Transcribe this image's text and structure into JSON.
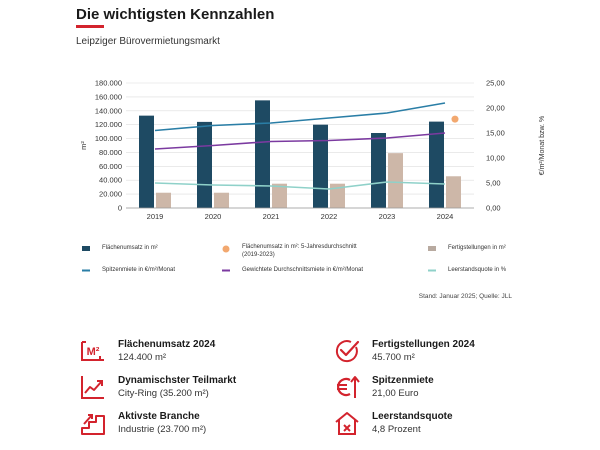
{
  "header": {
    "title": "Die wichtigsten Kennzahlen",
    "subtitle": "Leipziger Bürovermietungsmarkt"
  },
  "chart_data": {
    "type": "bar",
    "categories": [
      "2019",
      "2020",
      "2021",
      "2022",
      "2023",
      "2024"
    ],
    "left_axis": {
      "label": "m²",
      "min": 0,
      "max": 180000,
      "ticks": [
        "0",
        "20.000",
        "40.000",
        "60.000",
        "80.000",
        "100.000",
        "120.000",
        "140.000",
        "160.000",
        "180.000"
      ]
    },
    "right_axis": {
      "label": "€/m²/Monat bzw. %",
      "min": 0,
      "max": 25,
      "ticks": [
        "0,00",
        "5,00",
        "10,00",
        "15,00",
        "20,00",
        "25,00"
      ]
    },
    "series": [
      {
        "name": "Flächenumsatz in m²",
        "kind": "bar",
        "axis": "left",
        "color": "#1e4a63",
        "values": [
          133000,
          124000,
          155000,
          120000,
          108000,
          124400
        ]
      },
      {
        "name": "Fertigstellungen in m²",
        "kind": "bar",
        "axis": "left",
        "color": "#cdb7a8",
        "values": [
          22000,
          22000,
          35000,
          35000,
          79000,
          45700
        ]
      },
      {
        "name": "Spitzenmiete in €/m²/Monat",
        "kind": "line",
        "axis": "right",
        "color": "#2a7ea6",
        "values": [
          15.5,
          16.5,
          17.0,
          18.0,
          19.0,
          21.0
        ]
      },
      {
        "name": "Gewichtete Durchschnittsmiete in €/m²/Monat",
        "kind": "line",
        "axis": "right",
        "color": "#7b3aa0",
        "values": [
          11.8,
          12.5,
          13.3,
          13.5,
          14.0,
          15.0
        ]
      },
      {
        "name": "Leerstandsquote in %",
        "kind": "line",
        "axis": "right",
        "color": "#8fd1c9",
        "values": [
          5.0,
          4.6,
          4.4,
          3.8,
          5.2,
          4.8
        ]
      },
      {
        "name": "Flächenumsatz in m²: 5-Jahresdurchschnitt (2019-2023)",
        "kind": "point",
        "axis": "left",
        "color": "#f2a86f",
        "x": "2024",
        "value": 128000
      }
    ]
  },
  "legend": {
    "items": [
      "Flächenumsatz in m²",
      "Flächenumsatz in m²: 5-Jahresdurchschnitt (2019-2023)",
      "Fertigstellungen in m²",
      "Spitzenmiete in €/m²/Monat",
      "Gewichtete Durchschnittsmiete in €/m²/Monat",
      "Leerstandsquote in %"
    ]
  },
  "source": "Stand: Januar 2025; Quelle: JLL",
  "kpis": {
    "k1_title": "Flächenumsatz 2024",
    "k1_value": "124.400 m²",
    "k2_title": "Fertigstellungen 2024",
    "k2_value": "45.700 m²",
    "k3_title": "Dynamischster Teilmarkt",
    "k3_value": "City-Ring (35.200 m²)",
    "k4_title": "Spitzenmiete",
    "k4_value": "21,00 Euro",
    "k5_title": "Aktivste Branche",
    "k5_value": "Industrie (23.700 m²)",
    "k6_title": "Leerstandsquote",
    "k6_value": "4,8 Prozent",
    "icon_color": "#d3232d",
    "m2_icon_text": "M²"
  }
}
